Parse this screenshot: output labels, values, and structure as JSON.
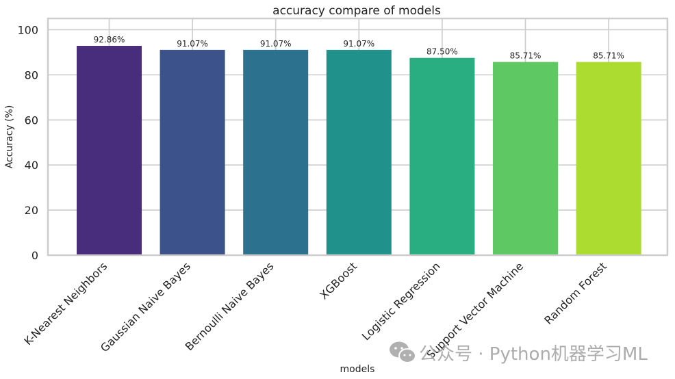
{
  "chart_data": {
    "type": "bar",
    "title": "accuracy compare of models",
    "xlabel": "models",
    "ylabel": "Accuracy (%)",
    "ylim": [
      0,
      105
    ],
    "yticks": [
      0,
      20,
      40,
      60,
      80,
      100
    ],
    "grid": true,
    "categories": [
      "K-Nearest Neighbors",
      "Gaussian Naive Bayes",
      "Bernoulli Naive Bayes",
      "XGBoost",
      "Logistic Regression",
      "Support Vector Machine",
      "Random Forest"
    ],
    "values": [
      92.86,
      91.07,
      91.07,
      91.07,
      87.5,
      85.71,
      85.71
    ],
    "value_labels": [
      "92.86%",
      "91.07%",
      "91.07%",
      "91.07%",
      "87.50%",
      "85.71%",
      "85.71%"
    ],
    "colors": [
      "#472d7b",
      "#3b528b",
      "#2c728e",
      "#21918c",
      "#28ae80",
      "#5ec962",
      "#addc30"
    ],
    "grid_color": "#cccccc",
    "axes_edge_color": "#cccccc"
  },
  "watermark": {
    "icon": "wechat-icon",
    "text": "公众号 · Python机器学习ML"
  }
}
